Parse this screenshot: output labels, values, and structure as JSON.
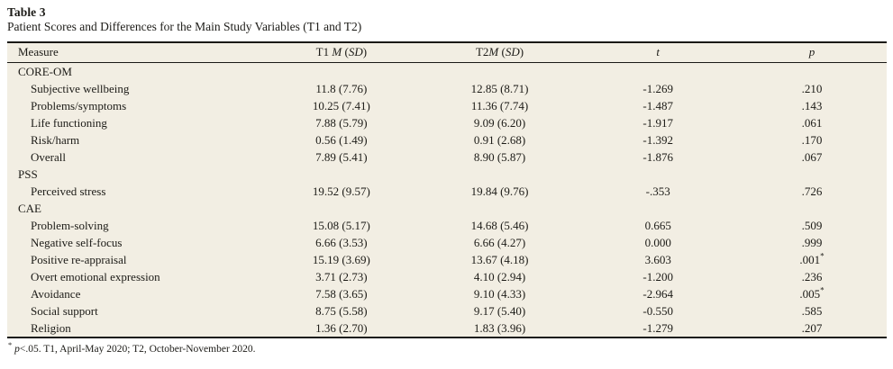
{
  "title": {
    "label": "Table 3",
    "caption": "Patient Scores and Differences for the Main Study Variables (T1 and T2)"
  },
  "table": {
    "header": {
      "measure": "Measure",
      "t1_parts": [
        {
          "text": "T1 "
        },
        {
          "text": "M",
          "italic": true
        },
        {
          "text": " ("
        },
        {
          "text": "SD",
          "italic": true
        },
        {
          "text": ")"
        }
      ],
      "t2_parts": [
        {
          "text": "T2"
        },
        {
          "text": "M",
          "italic": true
        },
        {
          "text": " ("
        },
        {
          "text": "SD",
          "italic": true
        },
        {
          "text": ")"
        }
      ],
      "t_parts": [
        {
          "text": "t",
          "italic": true
        }
      ],
      "p_parts": [
        {
          "text": "p",
          "italic": true
        }
      ]
    },
    "notation": {
      "sig_marker": "*"
    },
    "rows": [
      {
        "section": true,
        "measure": "CORE-OM"
      },
      {
        "measure": "Subjective wellbeing",
        "t1": "11.8 (7.76)",
        "t2": "12.85 (8.71)",
        "t": "-1.269",
        "p": ".210",
        "star": false
      },
      {
        "measure": "Problems/symptoms",
        "t1": "10.25 (7.41)",
        "t2": "11.36 (7.74)",
        "t": "-1.487",
        "p": ".143",
        "star": false
      },
      {
        "measure": "Life functioning",
        "t1": "7.88 (5.79)",
        "t2": "9.09 (6.20)",
        "t": "-1.917",
        "p": ".061",
        "star": false
      },
      {
        "measure": "Risk/harm",
        "t1": "0.56 (1.49)",
        "t2": "0.91 (2.68)",
        "t": "-1.392",
        "p": ".170",
        "star": false
      },
      {
        "measure": "Overall",
        "t1": "7.89 (5.41)",
        "t2": "8.90 (5.87)",
        "t": "-1.876",
        "p": ".067",
        "star": false
      },
      {
        "section": true,
        "measure": "PSS"
      },
      {
        "measure": "Perceived stress",
        "t1": "19.52 (9.57)",
        "t2": "19.84 (9.76)",
        "t": "-.353",
        "p": ".726",
        "star": false
      },
      {
        "section": true,
        "measure": "CAE"
      },
      {
        "measure": "Problem-solving",
        "t1": "15.08 (5.17)",
        "t2": "14.68 (5.46)",
        "t": "0.665",
        "p": ".509",
        "star": false
      },
      {
        "measure": "Negative self-focus",
        "t1": "6.66 (3.53)",
        "t2": "6.66 (4.27)",
        "t": "0.000",
        "p": ".999",
        "star": false
      },
      {
        "measure": "Positive re-appraisal",
        "t1": "15.19 (3.69)",
        "t2": "13.67 (4.18)",
        "t": "3.603",
        "p": ".001",
        "star": true
      },
      {
        "measure": "Overt emotional expression",
        "t1": "3.71 (2.73)",
        "t2": "4.10 (2.94)",
        "t": "-1.200",
        "p": ".236",
        "star": false
      },
      {
        "measure": "Avoidance",
        "t1": "7.58 (3.65)",
        "t2": "9.10 (4.33)",
        "t": "-2.964",
        "p": ".005",
        "star": true
      },
      {
        "measure": "Social support",
        "t1": "8.75 (5.58)",
        "t2": "9.17 (5.40)",
        "t": "-0.550",
        "p": ".585",
        "star": false
      },
      {
        "measure": "Religion",
        "t1": "1.36 (2.70)",
        "t2": "1.83 (3.96)",
        "t": "-1.279",
        "p": ".207",
        "star": false
      }
    ],
    "footnote_parts": [
      {
        "text": "*",
        "sup": true
      },
      {
        "text": " "
      },
      {
        "text": "p",
        "italic": true
      },
      {
        "text": "<.05. T1, April-May 2020; T2, October-November 2020."
      }
    ]
  },
  "colors": {
    "table_background": "#f2eee3",
    "rule": "#1a1916",
    "text": "#1c1b17"
  }
}
